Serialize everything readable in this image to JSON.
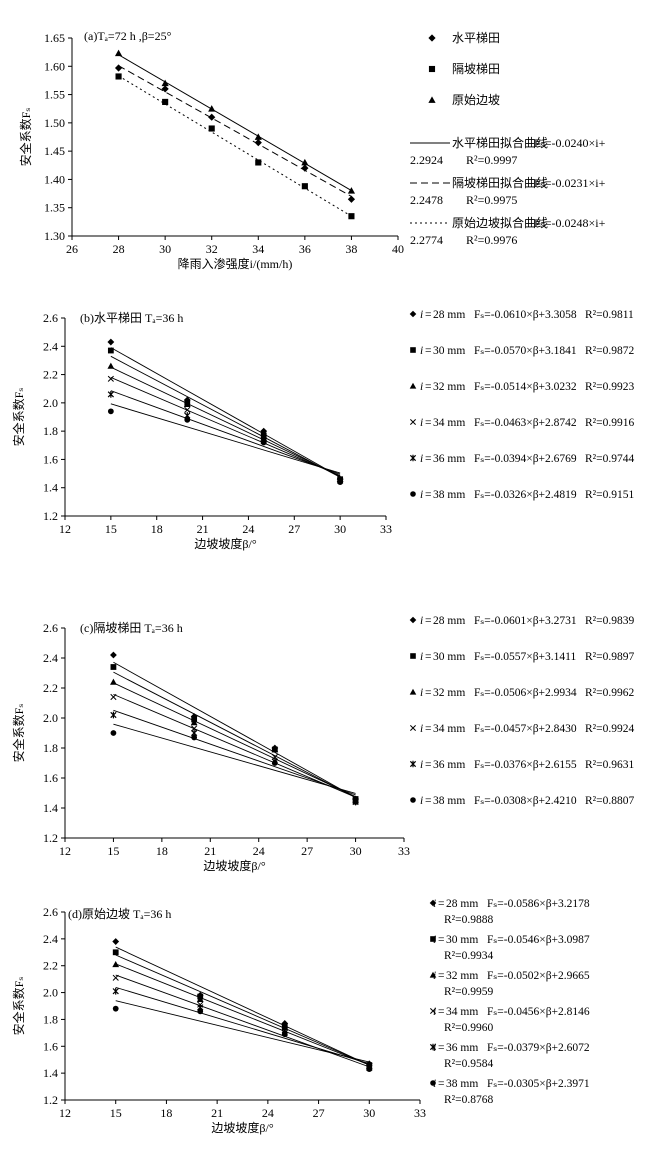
{
  "chart_data": [
    {
      "id": "a",
      "type": "scatter",
      "title": "(a)Tₐ=72 h ,β=25°",
      "xlabel": "降雨入渗强度i/(mm/h)",
      "ylabel": "安全系数Fₛ",
      "xlim": [
        26,
        40
      ],
      "ylim": [
        1.3,
        1.65
      ],
      "xticks": [
        "26",
        "28",
        "30",
        "32",
        "34",
        "36",
        "38",
        "40"
      ],
      "yticks": [
        "1.30",
        "1.35",
        "1.40",
        "1.45",
        "1.50",
        "1.55",
        "1.60",
        "1.65"
      ],
      "grid": false,
      "legend_position": "right",
      "series": [
        {
          "name": "水平梯田",
          "marker": "diamond",
          "x": [
            28,
            30,
            32,
            34,
            36,
            38
          ],
          "y": [
            1.597,
            1.56,
            1.51,
            1.465,
            1.42,
            1.365
          ]
        },
        {
          "name": "隔坡梯田",
          "marker": "square",
          "x": [
            28,
            30,
            32,
            34,
            36,
            38
          ],
          "y": [
            1.582,
            1.537,
            1.49,
            1.43,
            1.388,
            1.335
          ]
        },
        {
          "name": "原始边坡",
          "marker": "triangle",
          "x": [
            28,
            30,
            32,
            34,
            36,
            38
          ],
          "y": [
            1.623,
            1.57,
            1.525,
            1.475,
            1.43,
            1.38
          ]
        }
      ],
      "fits": [
        {
          "name": "水平梯田拟合曲线",
          "equation": "Fₛ=-0.0240×i+",
          "equation_cont": "2.2924",
          "r2": "R²=0.9997",
          "slope": -0.024,
          "intercept": 2.2924,
          "dash": "solid"
        },
        {
          "name": "隔坡梯田拟合曲线",
          "equation": "Fₛ=-0.0231×i+",
          "equation_cont": "2.2478",
          "r2": "R²=0.9975",
          "slope": -0.0231,
          "intercept": 2.2478,
          "dash": "dashed"
        },
        {
          "name": "原始边坡拟合曲线",
          "equation": "Fₛ=-0.0248×i+",
          "equation_cont": "2.2774",
          "r2": "R²=0.9976",
          "slope": -0.0248,
          "intercept": 2.2774,
          "dash": "dotted"
        }
      ]
    },
    {
      "id": "b",
      "type": "scatter",
      "title": "(b)水平梯田 Tₐ=36 h",
      "xlabel": "边坡坡度β/°",
      "ylabel": "安全系数Fₛ",
      "xlim": [
        12,
        33
      ],
      "ylim": [
        1.2,
        2.6
      ],
      "xticks": [
        "12",
        "15",
        "18",
        "21",
        "24",
        "27",
        "30",
        "33"
      ],
      "yticks": [
        "1.2",
        "1.4",
        "1.6",
        "1.8",
        "2.0",
        "2.2",
        "2.4",
        "2.6"
      ],
      "grid": false,
      "legend_position": "right",
      "x": [
        15,
        20,
        25,
        30
      ],
      "series": [
        {
          "i": "28 mm",
          "marker": "diamond",
          "y": [
            2.43,
            2.02,
            1.8,
            1.46
          ],
          "equation": "Fₛ=-0.0610×β+3.3058",
          "r2": "R²=0.9811",
          "slope": -0.061,
          "intercept": 3.3058
        },
        {
          "i": "30 mm",
          "marker": "square",
          "y": [
            2.37,
            2.0,
            1.77,
            1.46
          ],
          "equation": "Fₛ=-0.0570×β+3.1841",
          "r2": "R²=0.9872",
          "slope": -0.057,
          "intercept": 3.1841
        },
        {
          "i": "32 mm",
          "marker": "triangle",
          "y": [
            2.26,
            1.99,
            1.75,
            1.46
          ],
          "equation": "Fₛ=-0.0514×β+3.0232",
          "r2": "R²=0.9923",
          "slope": -0.0514,
          "intercept": 3.0232
        },
        {
          "i": "34 mm",
          "marker": "x",
          "y": [
            2.17,
            1.95,
            1.74,
            1.45
          ],
          "equation": "Fₛ=-0.0463×β+2.8742",
          "r2": "R²=0.9916",
          "slope": -0.0463,
          "intercept": 2.8742
        },
        {
          "i": "36 mm",
          "marker": "star",
          "y": [
            2.06,
            1.91,
            1.73,
            1.45
          ],
          "equation": "Fₛ=-0.0394×β+2.6769",
          "r2": "R²=0.9744",
          "slope": -0.0394,
          "intercept": 2.6769
        },
        {
          "i": "38 mm",
          "marker": "circle",
          "y": [
            1.94,
            1.88,
            1.72,
            1.44
          ],
          "equation": "Fₛ=-0.0326×β+2.4819",
          "r2": "R²=0.9151",
          "slope": -0.0326,
          "intercept": 2.4819
        }
      ]
    },
    {
      "id": "c",
      "type": "scatter",
      "title": "(c)隔坡梯田 Tₐ=36 h",
      "xlabel": "边坡坡度β/°",
      "ylabel": "安全系数Fₛ",
      "xlim": [
        12,
        33
      ],
      "ylim": [
        1.2,
        2.6
      ],
      "xticks": [
        "12",
        "15",
        "18",
        "21",
        "24",
        "27",
        "30",
        "33"
      ],
      "yticks": [
        "1.2",
        "1.4",
        "1.6",
        "1.8",
        "2.0",
        "2.2",
        "2.4",
        "2.6"
      ],
      "grid": false,
      "legend_position": "right",
      "x": [
        15,
        20,
        25,
        30
      ],
      "series": [
        {
          "i": "28 mm",
          "marker": "diamond",
          "y": [
            2.42,
            2.01,
            1.8,
            1.46
          ],
          "equation": "Fₛ=-0.0601×β+3.2731",
          "r2": "R²=0.9839",
          "slope": -0.0601,
          "intercept": 3.2731
        },
        {
          "i": "30 mm",
          "marker": "square",
          "y": [
            2.34,
            1.99,
            1.79,
            1.46
          ],
          "equation": "Fₛ=-0.0557×β+3.1411",
          "r2": "R²=0.9897",
          "slope": -0.0557,
          "intercept": 3.1411
        },
        {
          "i": "32 mm",
          "marker": "triangle",
          "y": [
            2.24,
            1.97,
            1.79,
            1.45
          ],
          "equation": "Fₛ=-0.0506×β+2.9934",
          "r2": "R²=0.9962",
          "slope": -0.0506,
          "intercept": 2.9934
        },
        {
          "i": "34 mm",
          "marker": "x",
          "y": [
            2.14,
            1.93,
            1.74,
            1.45
          ],
          "equation": "Fₛ=-0.0457×β+2.8430",
          "r2": "R²=0.9924",
          "slope": -0.0457,
          "intercept": 2.843
        },
        {
          "i": "36 mm",
          "marker": "star",
          "y": [
            2.02,
            1.9,
            1.71,
            1.44
          ],
          "equation": "Fₛ=-0.0376×β+2.6155",
          "r2": "R²=0.9631",
          "slope": -0.0376,
          "intercept": 2.6155
        },
        {
          "i": "38 mm",
          "marker": "circle",
          "y": [
            1.9,
            1.87,
            1.7,
            1.44
          ],
          "equation": "Fₛ=-0.0308×β+2.4210",
          "r2": "R²=0.8807",
          "slope": -0.0308,
          "intercept": 2.421
        }
      ]
    },
    {
      "id": "d",
      "type": "scatter",
      "title": "(d)原始边坡 Tₐ=36 h",
      "xlabel": "边坡坡度β/°",
      "ylabel": "安全系数Fₛ",
      "xlim": [
        12,
        33
      ],
      "ylim": [
        1.2,
        2.6
      ],
      "xticks": [
        "12",
        "15",
        "18",
        "21",
        "24",
        "27",
        "30",
        "33"
      ],
      "yticks": [
        "1.2",
        "1.4",
        "1.6",
        "1.8",
        "2.0",
        "2.2",
        "2.4",
        "2.6"
      ],
      "grid": false,
      "legend_position": "right",
      "x": [
        15,
        20,
        25,
        30
      ],
      "series": [
        {
          "i": "28 mm",
          "marker": "diamond",
          "y": [
            2.38,
            1.98,
            1.77,
            1.47
          ],
          "equation": "Fₛ=-0.0586×β+3.2178",
          "r2": "R²=0.9888",
          "slope": -0.0586,
          "intercept": 3.2178
        },
        {
          "i": "30 mm",
          "marker": "square",
          "y": [
            2.3,
            1.97,
            1.75,
            1.46
          ],
          "equation": "Fₛ=-0.0546×β+3.0987",
          "r2": "R²=0.9934",
          "slope": -0.0546,
          "intercept": 3.0987
        },
        {
          "i": "32 mm",
          "marker": "triangle",
          "y": [
            2.21,
            1.95,
            1.74,
            1.45
          ],
          "equation": "Fₛ=-0.0502×β+2.9665",
          "r2": "R²=0.9959",
          "slope": -0.0502,
          "intercept": 2.9665
        },
        {
          "i": "34 mm",
          "marker": "x",
          "y": [
            2.11,
            1.91,
            1.72,
            1.44
          ],
          "equation": "Fₛ=-0.0456×β+2.8146",
          "r2": "R²=0.9960",
          "slope": -0.0456,
          "intercept": 2.8146
        },
        {
          "i": "36 mm",
          "marker": "star",
          "y": [
            2.01,
            1.89,
            1.7,
            1.44
          ],
          "equation": "Fₛ=-0.0379×β+2.6072",
          "r2": "R²=0.9584",
          "slope": -0.0379,
          "intercept": 2.6072
        },
        {
          "i": "38 mm",
          "marker": "circle",
          "y": [
            1.88,
            1.86,
            1.69,
            1.43
          ],
          "equation": "Fₛ=-0.0305×β+2.3971",
          "r2": "R²=0.8768",
          "slope": -0.0305,
          "intercept": 2.3971
        }
      ]
    }
  ]
}
